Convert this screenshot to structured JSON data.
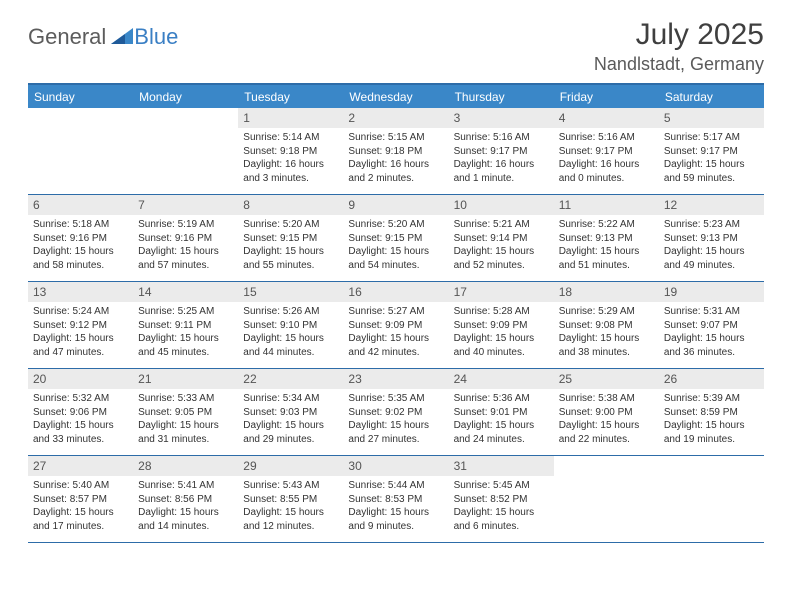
{
  "logo": {
    "text1": "General",
    "text2": "Blue"
  },
  "title": "July 2025",
  "location": "Nandlstadt, Germany",
  "colors": {
    "header_bar": "#3a87c8",
    "border": "#2d6ca8",
    "daynum_bg": "#ebebeb",
    "logo_gray": "#5c5c5c",
    "logo_blue": "#3a7fc4",
    "tri_dark": "#1f5a99",
    "tri_light": "#3a87c8"
  },
  "weekdays": [
    "Sunday",
    "Monday",
    "Tuesday",
    "Wednesday",
    "Thursday",
    "Friday",
    "Saturday"
  ],
  "weeks": [
    [
      null,
      null,
      {
        "n": "1",
        "sr": "5:14 AM",
        "ss": "9:18 PM",
        "dl": "16 hours and 3 minutes."
      },
      {
        "n": "2",
        "sr": "5:15 AM",
        "ss": "9:18 PM",
        "dl": "16 hours and 2 minutes."
      },
      {
        "n": "3",
        "sr": "5:16 AM",
        "ss": "9:17 PM",
        "dl": "16 hours and 1 minute."
      },
      {
        "n": "4",
        "sr": "5:16 AM",
        "ss": "9:17 PM",
        "dl": "16 hours and 0 minutes."
      },
      {
        "n": "5",
        "sr": "5:17 AM",
        "ss": "9:17 PM",
        "dl": "15 hours and 59 minutes."
      }
    ],
    [
      {
        "n": "6",
        "sr": "5:18 AM",
        "ss": "9:16 PM",
        "dl": "15 hours and 58 minutes."
      },
      {
        "n": "7",
        "sr": "5:19 AM",
        "ss": "9:16 PM",
        "dl": "15 hours and 57 minutes."
      },
      {
        "n": "8",
        "sr": "5:20 AM",
        "ss": "9:15 PM",
        "dl": "15 hours and 55 minutes."
      },
      {
        "n": "9",
        "sr": "5:20 AM",
        "ss": "9:15 PM",
        "dl": "15 hours and 54 minutes."
      },
      {
        "n": "10",
        "sr": "5:21 AM",
        "ss": "9:14 PM",
        "dl": "15 hours and 52 minutes."
      },
      {
        "n": "11",
        "sr": "5:22 AM",
        "ss": "9:13 PM",
        "dl": "15 hours and 51 minutes."
      },
      {
        "n": "12",
        "sr": "5:23 AM",
        "ss": "9:13 PM",
        "dl": "15 hours and 49 minutes."
      }
    ],
    [
      {
        "n": "13",
        "sr": "5:24 AM",
        "ss": "9:12 PM",
        "dl": "15 hours and 47 minutes."
      },
      {
        "n": "14",
        "sr": "5:25 AM",
        "ss": "9:11 PM",
        "dl": "15 hours and 45 minutes."
      },
      {
        "n": "15",
        "sr": "5:26 AM",
        "ss": "9:10 PM",
        "dl": "15 hours and 44 minutes."
      },
      {
        "n": "16",
        "sr": "5:27 AM",
        "ss": "9:09 PM",
        "dl": "15 hours and 42 minutes."
      },
      {
        "n": "17",
        "sr": "5:28 AM",
        "ss": "9:09 PM",
        "dl": "15 hours and 40 minutes."
      },
      {
        "n": "18",
        "sr": "5:29 AM",
        "ss": "9:08 PM",
        "dl": "15 hours and 38 minutes."
      },
      {
        "n": "19",
        "sr": "5:31 AM",
        "ss": "9:07 PM",
        "dl": "15 hours and 36 minutes."
      }
    ],
    [
      {
        "n": "20",
        "sr": "5:32 AM",
        "ss": "9:06 PM",
        "dl": "15 hours and 33 minutes."
      },
      {
        "n": "21",
        "sr": "5:33 AM",
        "ss": "9:05 PM",
        "dl": "15 hours and 31 minutes."
      },
      {
        "n": "22",
        "sr": "5:34 AM",
        "ss": "9:03 PM",
        "dl": "15 hours and 29 minutes."
      },
      {
        "n": "23",
        "sr": "5:35 AM",
        "ss": "9:02 PM",
        "dl": "15 hours and 27 minutes."
      },
      {
        "n": "24",
        "sr": "5:36 AM",
        "ss": "9:01 PM",
        "dl": "15 hours and 24 minutes."
      },
      {
        "n": "25",
        "sr": "5:38 AM",
        "ss": "9:00 PM",
        "dl": "15 hours and 22 minutes."
      },
      {
        "n": "26",
        "sr": "5:39 AM",
        "ss": "8:59 PM",
        "dl": "15 hours and 19 minutes."
      }
    ],
    [
      {
        "n": "27",
        "sr": "5:40 AM",
        "ss": "8:57 PM",
        "dl": "15 hours and 17 minutes."
      },
      {
        "n": "28",
        "sr": "5:41 AM",
        "ss": "8:56 PM",
        "dl": "15 hours and 14 minutes."
      },
      {
        "n": "29",
        "sr": "5:43 AM",
        "ss": "8:55 PM",
        "dl": "15 hours and 12 minutes."
      },
      {
        "n": "30",
        "sr": "5:44 AM",
        "ss": "8:53 PM",
        "dl": "15 hours and 9 minutes."
      },
      {
        "n": "31",
        "sr": "5:45 AM",
        "ss": "8:52 PM",
        "dl": "15 hours and 6 minutes."
      },
      null,
      null
    ]
  ],
  "labels": {
    "sunrise": "Sunrise:",
    "sunset": "Sunset:",
    "daylight": "Daylight:"
  }
}
